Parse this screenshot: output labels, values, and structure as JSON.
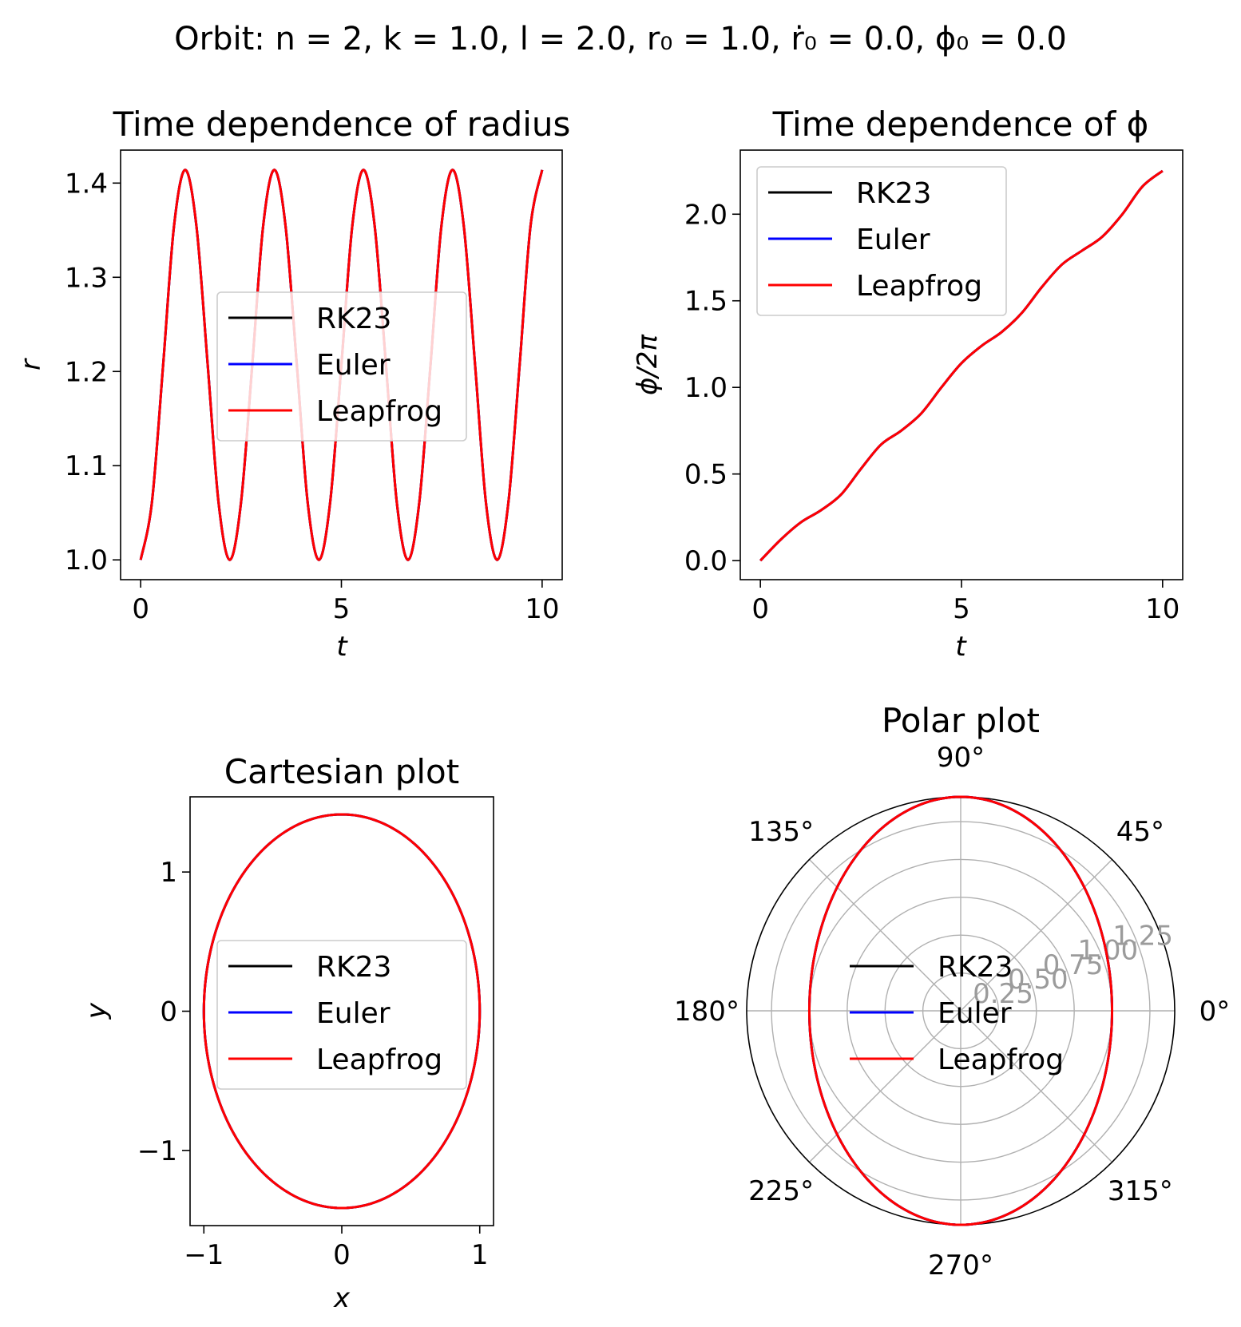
{
  "suptitle": "Orbit:   n = 2,  k = 1.0,  l = 2.0,  r₀ = 1.0,  ṙ₀ = 0.0,  ϕ₀ = 0.0",
  "colors": {
    "RK23": "#000000",
    "Euler": "#0000ff",
    "Leapfrog": "#ff0000",
    "grid": "#b0b0b0",
    "polar_tick": "#9b9b9b"
  },
  "chart_data": [
    {
      "type": "line",
      "title": "Time dependence of radius",
      "xlabel": "t",
      "ylabel": "r",
      "xlim": [
        -0.5,
        10.5
      ],
      "ylim": [
        0.979,
        1.435
      ],
      "xticks": [
        0,
        5,
        10
      ],
      "xticklabels": [
        "0",
        "5",
        "10"
      ],
      "yticks": [
        1.0,
        1.1,
        1.2,
        1.3,
        1.4
      ],
      "yticklabels": [
        "1.0",
        "1.1",
        "1.2",
        "1.3",
        "1.4"
      ],
      "legend": {
        "position": "center",
        "entries": [
          "RK23",
          "Euler",
          "Leapfrog"
        ]
      },
      "series": [
        {
          "name": "RK23",
          "color": "#000000",
          "x": [
            0,
            0.28,
            0.56,
            0.83,
            1.11,
            1.39,
            1.67,
            1.94,
            2.22,
            2.5,
            2.78,
            3.05,
            3.33,
            3.61,
            3.89,
            4.16,
            4.44,
            4.72,
            5.0,
            5.27,
            5.55,
            5.83,
            6.11,
            6.38,
            6.66,
            6.94,
            7.22,
            7.49,
            7.77,
            8.05,
            8.33,
            8.6,
            8.88,
            9.16,
            9.44,
            9.71,
            10.0
          ],
          "y": [
            1.0,
            1.061,
            1.207,
            1.354,
            1.414,
            1.354,
            1.207,
            1.061,
            1.0,
            1.061,
            1.207,
            1.354,
            1.414,
            1.354,
            1.207,
            1.061,
            1.0,
            1.061,
            1.207,
            1.354,
            1.414,
            1.354,
            1.207,
            1.061,
            1.0,
            1.061,
            1.207,
            1.354,
            1.414,
            1.354,
            1.207,
            1.061,
            1.0,
            1.061,
            1.207,
            1.354,
            1.414
          ]
        },
        {
          "name": "Euler",
          "color": "#0000ff",
          "x": [
            0,
            0.28,
            0.56,
            0.83,
            1.11,
            1.39,
            1.67,
            1.94,
            2.22,
            2.5,
            2.78,
            3.05,
            3.33,
            3.61,
            3.89,
            4.16,
            4.44,
            4.72,
            5.0,
            5.27,
            5.55,
            5.83,
            6.11,
            6.38,
            6.66,
            6.94,
            7.22,
            7.49,
            7.77,
            8.05,
            8.33,
            8.6,
            8.88,
            9.16,
            9.44,
            9.71,
            10.0
          ],
          "y": [
            1.0,
            1.061,
            1.207,
            1.354,
            1.414,
            1.354,
            1.207,
            1.061,
            1.0,
            1.061,
            1.207,
            1.354,
            1.414,
            1.354,
            1.207,
            1.061,
            1.0,
            1.061,
            1.207,
            1.354,
            1.414,
            1.354,
            1.207,
            1.061,
            1.0,
            1.061,
            1.207,
            1.354,
            1.414,
            1.354,
            1.207,
            1.061,
            1.0,
            1.061,
            1.207,
            1.354,
            1.414
          ]
        },
        {
          "name": "Leapfrog",
          "color": "#ff0000",
          "x": [
            0,
            0.28,
            0.56,
            0.83,
            1.11,
            1.39,
            1.67,
            1.94,
            2.22,
            2.5,
            2.78,
            3.05,
            3.33,
            3.61,
            3.89,
            4.16,
            4.44,
            4.72,
            5.0,
            5.27,
            5.55,
            5.83,
            6.11,
            6.38,
            6.66,
            6.94,
            7.22,
            7.49,
            7.77,
            8.05,
            8.33,
            8.6,
            8.88,
            9.16,
            9.44,
            9.71,
            10.0
          ],
          "y": [
            1.0,
            1.061,
            1.207,
            1.354,
            1.414,
            1.354,
            1.207,
            1.061,
            1.0,
            1.061,
            1.207,
            1.354,
            1.414,
            1.354,
            1.207,
            1.061,
            1.0,
            1.061,
            1.207,
            1.354,
            1.414,
            1.354,
            1.207,
            1.061,
            1.0,
            1.061,
            1.207,
            1.354,
            1.414,
            1.354,
            1.207,
            1.061,
            1.0,
            1.061,
            1.207,
            1.354,
            1.414
          ]
        }
      ]
    },
    {
      "type": "line",
      "title": "Time dependence of ϕ",
      "xlabel": "t",
      "ylabel": "ϕ/2π",
      "xlim": [
        -0.5,
        10.5
      ],
      "ylim": [
        -0.11,
        2.37
      ],
      "xticks": [
        0,
        5,
        10
      ],
      "xticklabels": [
        "0",
        "5",
        "10"
      ],
      "yticks": [
        0.0,
        0.5,
        1.0,
        1.5,
        2.0
      ],
      "yticklabels": [
        "0.0",
        "0.5",
        "1.0",
        "1.5",
        "2.0"
      ],
      "legend": {
        "position": "upper left",
        "entries": [
          "RK23",
          "Euler",
          "Leapfrog"
        ]
      },
      "series": [
        {
          "name": "RK23",
          "color": "#000000",
          "x": [
            0,
            0.5,
            1.0,
            1.5,
            2.0,
            2.5,
            3.0,
            3.5,
            4.0,
            4.5,
            5.0,
            5.5,
            6.0,
            6.5,
            7.0,
            7.5,
            8.0,
            8.5,
            9.0,
            9.5,
            10.0
          ],
          "y": [
            0.0,
            0.12,
            0.22,
            0.29,
            0.38,
            0.53,
            0.67,
            0.75,
            0.85,
            1.0,
            1.14,
            1.24,
            1.32,
            1.43,
            1.58,
            1.71,
            1.79,
            1.87,
            2.0,
            2.16,
            2.25
          ]
        },
        {
          "name": "Euler",
          "color": "#0000ff",
          "x": [
            0,
            0.5,
            1.0,
            1.5,
            2.0,
            2.5,
            3.0,
            3.5,
            4.0,
            4.5,
            5.0,
            5.5,
            6.0,
            6.5,
            7.0,
            7.5,
            8.0,
            8.5,
            9.0,
            9.5,
            10.0
          ],
          "y": [
            0.0,
            0.12,
            0.22,
            0.29,
            0.38,
            0.53,
            0.67,
            0.75,
            0.85,
            1.0,
            1.14,
            1.24,
            1.32,
            1.43,
            1.58,
            1.71,
            1.79,
            1.87,
            2.0,
            2.16,
            2.25
          ]
        },
        {
          "name": "Leapfrog",
          "color": "#ff0000",
          "x": [
            0,
            0.5,
            1.0,
            1.5,
            2.0,
            2.5,
            3.0,
            3.5,
            4.0,
            4.5,
            5.0,
            5.5,
            6.0,
            6.5,
            7.0,
            7.5,
            8.0,
            8.5,
            9.0,
            9.5,
            10.0
          ],
          "y": [
            0.0,
            0.12,
            0.22,
            0.29,
            0.38,
            0.53,
            0.67,
            0.75,
            0.85,
            1.0,
            1.14,
            1.24,
            1.32,
            1.43,
            1.58,
            1.71,
            1.79,
            1.87,
            2.0,
            2.16,
            2.25
          ]
        }
      ]
    },
    {
      "type": "line",
      "title": "Cartesian plot",
      "xlabel": "x",
      "ylabel": "y",
      "xlim": [
        -1.1,
        1.1
      ],
      "ylim": [
        -1.54,
        1.54
      ],
      "xticks": [
        -1,
        0,
        1
      ],
      "xticklabels": [
        "−1",
        "0",
        "1"
      ],
      "yticks": [
        -1,
        0,
        1
      ],
      "yticklabels": [
        "−1",
        "0",
        "1"
      ],
      "legend": {
        "position": "center",
        "entries": [
          "RK23",
          "Euler",
          "Leapfrog"
        ]
      },
      "series": [
        {
          "name": "RK23",
          "color": "#000000",
          "shape": "ellipse",
          "semi_axis_x": 1.0,
          "semi_axis_y": 1.414
        },
        {
          "name": "Euler",
          "color": "#0000ff",
          "shape": "ellipse",
          "semi_axis_x": 1.0,
          "semi_axis_y": 1.414
        },
        {
          "name": "Leapfrog",
          "color": "#ff0000",
          "shape": "ellipse",
          "semi_axis_x": 1.0,
          "semi_axis_y": 1.414
        }
      ]
    },
    {
      "type": "polar",
      "title": "Polar plot",
      "rmax": 1.414,
      "rticks": [
        0.25,
        0.5,
        0.75,
        1.0,
        1.25
      ],
      "rticklabels": [
        "0.25",
        "0.50",
        "0.75",
        "1.00",
        "1.25"
      ],
      "thetaticks": [
        0,
        45,
        90,
        135,
        180,
        225,
        270,
        315
      ],
      "thetaticklabels": [
        "0°",
        "45°",
        "90°",
        "135°",
        "180°",
        "225°",
        "270°",
        "315°"
      ],
      "legend": {
        "position": "center",
        "entries": [
          "RK23",
          "Euler",
          "Leapfrog"
        ]
      },
      "series": [
        {
          "name": "RK23",
          "color": "#000000",
          "shape": "ellipse",
          "semi_axis_x": 1.0,
          "semi_axis_y": 1.414
        },
        {
          "name": "Euler",
          "color": "#0000ff",
          "shape": "ellipse",
          "semi_axis_x": 1.0,
          "semi_axis_y": 1.414
        },
        {
          "name": "Leapfrog",
          "color": "#ff0000",
          "shape": "ellipse",
          "semi_axis_x": 1.0,
          "semi_axis_y": 1.414
        }
      ]
    }
  ]
}
